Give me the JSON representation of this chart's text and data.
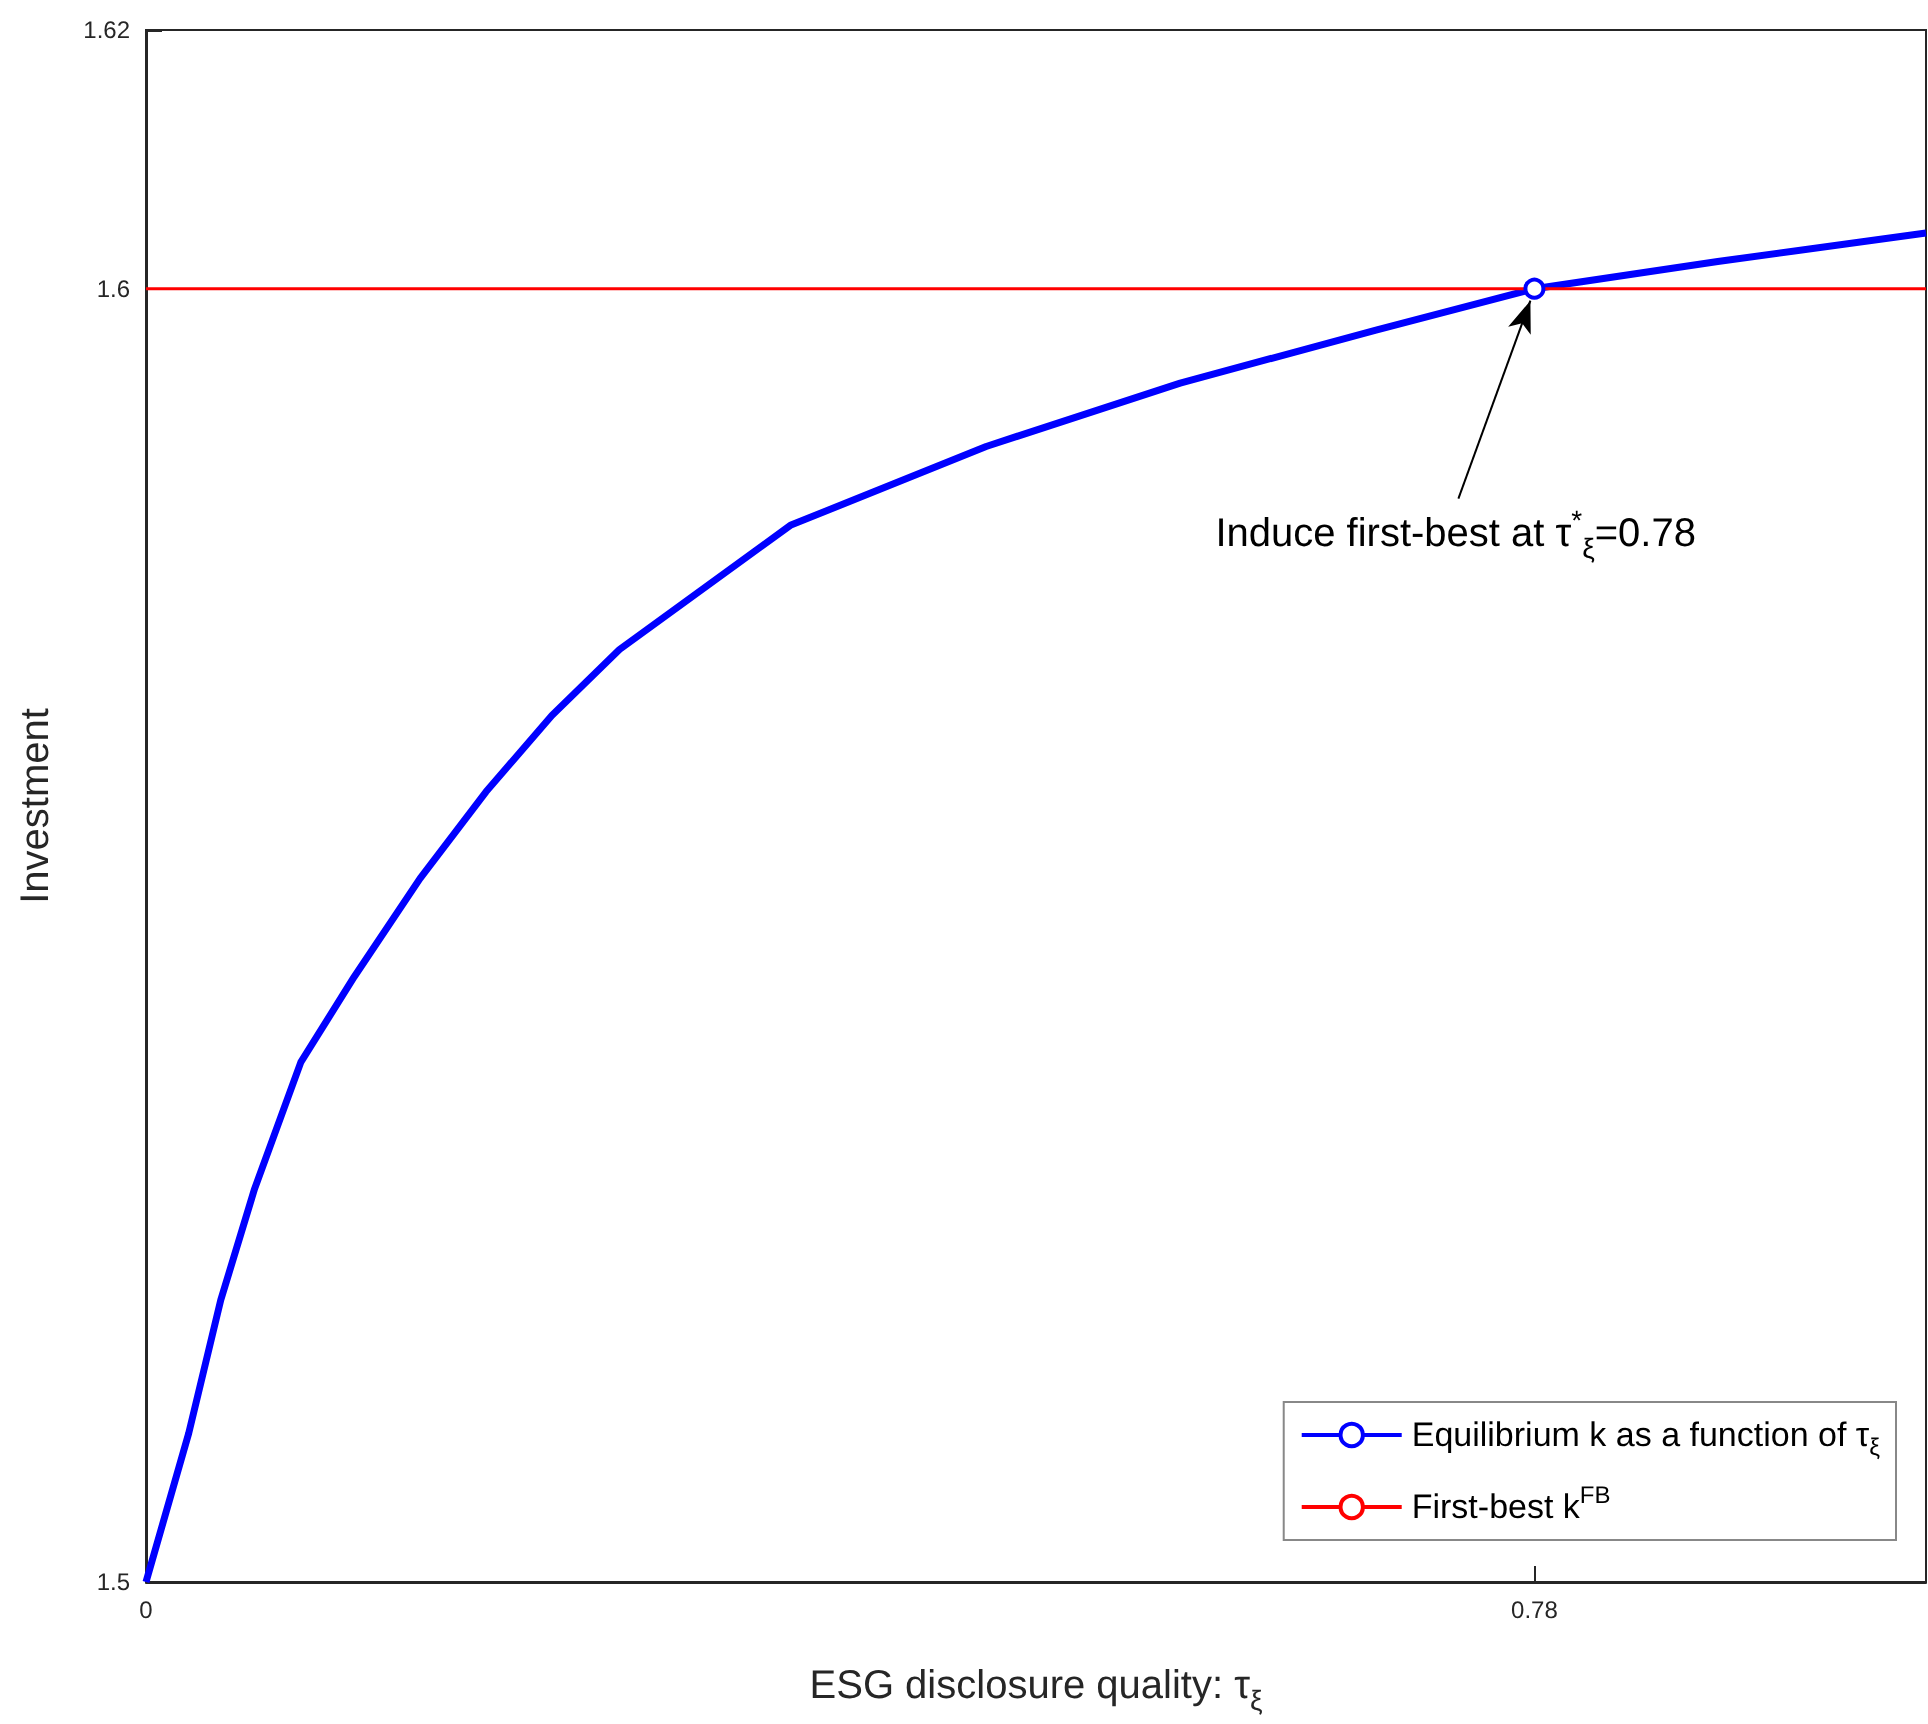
{
  "chart_data": {
    "type": "line",
    "xlabel": "ESG disclosure quality: τ$_{ξ}$",
    "ylabel": "Investment",
    "xlim": [
      0,
      1
    ],
    "xticks": [
      0,
      0.78
    ],
    "ylim": [
      1.5,
      1.62
    ],
    "yticks": [
      1.5,
      1.6,
      1.62
    ],
    "grid": false,
    "legend": "bottom right",
    "series": [
      {
        "name": "Equilibrium k as a function of τ$_{ξ}$",
        "color": "#0000ff",
        "x": [
          0,
          0.024,
          0.042,
          0.061,
          0.087,
          0.117,
          0.154,
          0.191,
          0.228,
          0.266,
          0.362,
          0.472,
          0.581,
          0.691,
          0.78,
          0.883,
          1.0
        ],
        "values": [
          1.5,
          1.5115,
          1.5218,
          1.5304,
          1.5402,
          1.5468,
          1.5544,
          1.5611,
          1.567,
          1.5721,
          1.5817,
          1.5878,
          1.5927,
          1.5968,
          1.6,
          1.6021,
          1.6043
        ]
      },
      {
        "name": "First-best k$^{FB}$",
        "color": "#ff0000",
        "x": [
          0,
          1
        ],
        "values": [
          1.6,
          1.6
        ]
      },
      {
        "type": "scatter",
        "color": "#0000ff",
        "marker": "circle",
        "x": [
          0.78
        ],
        "values": [
          1.6
        ]
      }
    ],
    "annotations": [
      {
        "text": "Induce first-best at τ$^{*}$$_{ξ}$=0.78",
        "x": 0.78,
        "y": 1.6
      }
    ]
  }
}
